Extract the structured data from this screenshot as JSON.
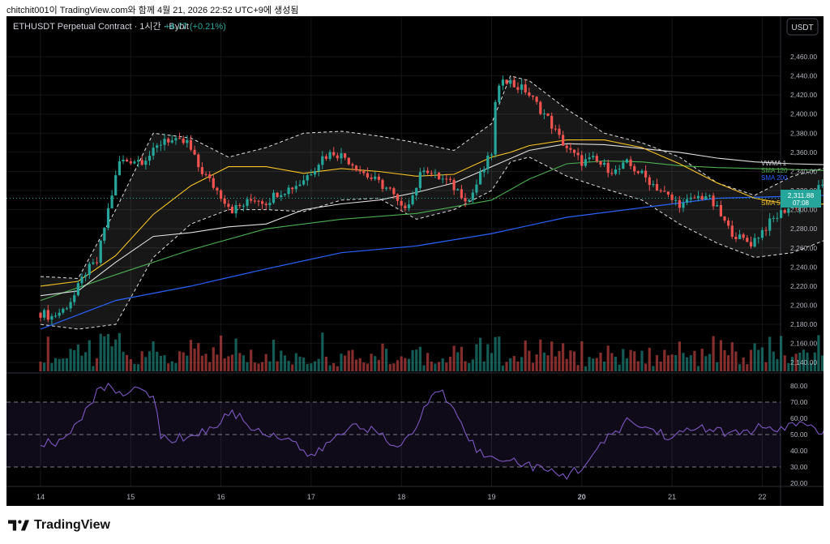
{
  "header": {
    "caption": "chitchit001이 TradingView.com와 함께 4월 21, 2026 22:52 UTC+9에 생성됨"
  },
  "chart": {
    "symbol_line": "ETHUSDT Perpetual Contract · 1시간 · Bybit",
    "change": "+4.77 (+0.21%)",
    "currency_button": "USDT",
    "indicator_labels": [
      "VWMA 1",
      "SMA 120",
      "SMA 200",
      "SMA 50"
    ],
    "last_price": "2,311.88",
    "countdown": "07:08",
    "colors": {
      "up": "#26a69a",
      "down": "#ef5350",
      "vwma": "#e0e0e0",
      "sma120": "#4caf50",
      "sma200": "#2962ff",
      "sma50": "#f7c325",
      "rsi": "#7e57c2"
    }
  },
  "brand": {
    "name": "TradingView"
  },
  "chart_data": {
    "type": "candlestick",
    "price_axis": {
      "range": [
        2120,
        2470
      ],
      "ticks": [
        "2,460.00",
        "2,440.00",
        "2,420.00",
        "2,400.00",
        "2,380.00",
        "2,360.00",
        "2,340.00",
        "2,320.00",
        "2,300.00",
        "2,280.00",
        "2,260.00",
        "2,240.00",
        "2,220.00",
        "2,200.00",
        "2,180.00",
        "2,160.00",
        "2,140.00"
      ],
      "tick_values": [
        2460,
        2440,
        2420,
        2400,
        2380,
        2360,
        2340,
        2320,
        2300,
        2280,
        2260,
        2240,
        2220,
        2200,
        2180,
        2160,
        2140
      ]
    },
    "time_axis": {
      "labels": [
        "14",
        "15",
        "16",
        "17",
        "18",
        "19",
        "20",
        "21",
        "22"
      ],
      "bold_label": "20",
      "hours_range": [
        0,
        220
      ]
    },
    "price_anchors": [
      [
        0,
        2192
      ],
      [
        3,
        2188
      ],
      [
        6,
        2195
      ],
      [
        9,
        2210
      ],
      [
        12,
        2235
      ],
      [
        15,
        2245
      ],
      [
        18,
        2300
      ],
      [
        21,
        2350
      ],
      [
        24,
        2352
      ],
      [
        27,
        2352
      ],
      [
        30,
        2360
      ],
      [
        33,
        2375
      ],
      [
        36,
        2370
      ],
      [
        39,
        2370
      ],
      [
        42,
        2345
      ],
      [
        45,
        2330
      ],
      [
        48,
        2315
      ],
      [
        51,
        2300
      ],
      [
        54,
        2305
      ],
      [
        57,
        2312
      ],
      [
        60,
        2308
      ],
      [
        63,
        2318
      ],
      [
        66,
        2322
      ],
      [
        69,
        2328
      ],
      [
        72,
        2340
      ],
      [
        75,
        2355
      ],
      [
        78,
        2360
      ],
      [
        81,
        2355
      ],
      [
        84,
        2345
      ],
      [
        87,
        2335
      ],
      [
        90,
        2328
      ],
      [
        93,
        2320
      ],
      [
        96,
        2300
      ],
      [
        99,
        2315
      ],
      [
        102,
        2345
      ],
      [
        105,
        2335
      ],
      [
        108,
        2330
      ],
      [
        111,
        2320
      ],
      [
        114,
        2310
      ],
      [
        117,
        2335
      ],
      [
        120,
        2360
      ],
      [
        121,
        2410
      ],
      [
        123,
        2440
      ],
      [
        126,
        2430
      ],
      [
        129,
        2425
      ],
      [
        132,
        2410
      ],
      [
        135,
        2395
      ],
      [
        138,
        2375
      ],
      [
        141,
        2360
      ],
      [
        144,
        2350
      ],
      [
        147,
        2352
      ],
      [
        150,
        2345
      ],
      [
        153,
        2340
      ],
      [
        156,
        2348
      ],
      [
        159,
        2340
      ],
      [
        162,
        2330
      ],
      [
        165,
        2320
      ],
      [
        168,
        2310
      ],
      [
        171,
        2305
      ],
      [
        174,
        2312
      ],
      [
        177,
        2315
      ],
      [
        180,
        2300
      ],
      [
        183,
        2280
      ],
      [
        186,
        2270
      ],
      [
        189,
        2265
      ],
      [
        192,
        2278
      ],
      [
        195,
        2290
      ],
      [
        198,
        2300
      ],
      [
        201,
        2305
      ],
      [
        204,
        2310
      ],
      [
        207,
        2322
      ],
      [
        210,
        2320
      ],
      [
        213,
        2315
      ],
      [
        216,
        2318
      ],
      [
        219,
        2312
      ]
    ],
    "indicators": {
      "sma200": [
        [
          0,
          2175
        ],
        [
          20,
          2205
        ],
        [
          40,
          2220
        ],
        [
          60,
          2238
        ],
        [
          80,
          2255
        ],
        [
          100,
          2262
        ],
        [
          120,
          2275
        ],
        [
          140,
          2292
        ],
        [
          160,
          2302
        ],
        [
          180,
          2312
        ],
        [
          200,
          2314
        ],
        [
          219,
          2316
        ]
      ],
      "sma120": [
        [
          0,
          2205
        ],
        [
          20,
          2232
        ],
        [
          40,
          2258
        ],
        [
          60,
          2280
        ],
        [
          80,
          2290
        ],
        [
          100,
          2296
        ],
        [
          120,
          2310
        ],
        [
          130,
          2332
        ],
        [
          140,
          2348
        ],
        [
          150,
          2351
        ],
        [
          160,
          2350
        ],
        [
          170,
          2346
        ],
        [
          180,
          2344
        ],
        [
          200,
          2342
        ],
        [
          219,
          2340
        ]
      ],
      "vwma": [
        [
          0,
          2210
        ],
        [
          10,
          2215
        ],
        [
          20,
          2245
        ],
        [
          30,
          2272
        ],
        [
          40,
          2276
        ],
        [
          50,
          2282
        ],
        [
          60,
          2285
        ],
        [
          70,
          2300
        ],
        [
          80,
          2306
        ],
        [
          90,
          2310
        ],
        [
          100,
          2318
        ],
        [
          110,
          2328
        ],
        [
          120,
          2345
        ],
        [
          130,
          2362
        ],
        [
          140,
          2369
        ],
        [
          150,
          2368
        ],
        [
          160,
          2364
        ],
        [
          170,
          2360
        ],
        [
          180,
          2354
        ],
        [
          190,
          2350
        ],
        [
          200,
          2348
        ],
        [
          219,
          2346
        ]
      ],
      "sma50": [
        [
          0,
          2220
        ],
        [
          10,
          2225
        ],
        [
          20,
          2252
        ],
        [
          30,
          2295
        ],
        [
          40,
          2325
        ],
        [
          50,
          2345
        ],
        [
          60,
          2345
        ],
        [
          70,
          2338
        ],
        [
          80,
          2343
        ],
        [
          90,
          2340
        ],
        [
          100,
          2335
        ],
        [
          110,
          2337
        ],
        [
          120,
          2355
        ],
        [
          125,
          2360
        ],
        [
          130,
          2367
        ],
        [
          140,
          2373
        ],
        [
          150,
          2373
        ],
        [
          160,
          2365
        ],
        [
          170,
          2348
        ],
        [
          180,
          2328
        ],
        [
          190,
          2312
        ],
        [
          200,
          2305
        ],
        [
          210,
          2306
        ],
        [
          219,
          2306
        ]
      ],
      "bb_upper": [
        [
          0,
          2230
        ],
        [
          10,
          2228
        ],
        [
          20,
          2300
        ],
        [
          30,
          2380
        ],
        [
          40,
          2375
        ],
        [
          50,
          2355
        ],
        [
          60,
          2365
        ],
        [
          70,
          2380
        ],
        [
          80,
          2382
        ],
        [
          90,
          2377
        ],
        [
          100,
          2370
        ],
        [
          110,
          2362
        ],
        [
          120,
          2390
        ],
        [
          125,
          2440
        ],
        [
          130,
          2435
        ],
        [
          140,
          2405
        ],
        [
          150,
          2380
        ],
        [
          160,
          2370
        ],
        [
          170,
          2355
        ],
        [
          180,
          2328
        ],
        [
          190,
          2315
        ],
        [
          200,
          2335
        ],
        [
          210,
          2345
        ],
        [
          219,
          2348
        ]
      ],
      "bb_lower": [
        [
          0,
          2180
        ],
        [
          10,
          2175
        ],
        [
          20,
          2180
        ],
        [
          30,
          2250
        ],
        [
          40,
          2285
        ],
        [
          50,
          2300
        ],
        [
          60,
          2300
        ],
        [
          70,
          2298
        ],
        [
          80,
          2310
        ],
        [
          90,
          2312
        ],
        [
          100,
          2290
        ],
        [
          110,
          2300
        ],
        [
          120,
          2320
        ],
        [
          125,
          2350
        ],
        [
          130,
          2355
        ],
        [
          140,
          2335
        ],
        [
          150,
          2322
        ],
        [
          160,
          2310
        ],
        [
          170,
          2285
        ],
        [
          180,
          2265
        ],
        [
          190,
          2250
        ],
        [
          200,
          2255
        ],
        [
          210,
          2270
        ],
        [
          219,
          2280
        ]
      ]
    },
    "volume_max_note": "volume bars shown without axis",
    "rsi": {
      "axis_ticks": [
        "80.00",
        "70.00",
        "60.00",
        "50.00",
        "40.00",
        "30.00",
        "20.00"
      ],
      "tick_values": [
        80,
        70,
        60,
        50,
        40,
        30,
        20
      ],
      "range": [
        15,
        85
      ],
      "band": [
        30,
        70
      ],
      "anchors": [
        [
          0,
          45
        ],
        [
          4,
          44
        ],
        [
          8,
          52
        ],
        [
          10,
          60
        ],
        [
          13,
          66
        ],
        [
          16,
          80
        ],
        [
          20,
          78
        ],
        [
          23,
          76
        ],
        [
          27,
          77
        ],
        [
          30,
          75
        ],
        [
          32,
          48
        ],
        [
          36,
          47
        ],
        [
          40,
          50
        ],
        [
          44,
          52
        ],
        [
          48,
          58
        ],
        [
          51,
          65
        ],
        [
          54,
          58
        ],
        [
          58,
          52
        ],
        [
          62,
          50
        ],
        [
          66,
          48
        ],
        [
          70,
          40
        ],
        [
          72,
          35
        ],
        [
          76,
          44
        ],
        [
          80,
          50
        ],
        [
          84,
          58
        ],
        [
          86,
          55
        ],
        [
          90,
          50
        ],
        [
          94,
          42
        ],
        [
          98,
          48
        ],
        [
          100,
          55
        ],
        [
          102,
          66
        ],
        [
          104,
          72
        ],
        [
          106,
          78
        ],
        [
          108,
          72
        ],
        [
          110,
          68
        ],
        [
          112,
          58
        ],
        [
          116,
          40
        ],
        [
          120,
          35
        ],
        [
          124,
          36
        ],
        [
          128,
          32
        ],
        [
          132,
          30
        ],
        [
          136,
          26
        ],
        [
          140,
          25
        ],
        [
          144,
          30
        ],
        [
          148,
          40
        ],
        [
          152,
          50
        ],
        [
          156,
          58
        ],
        [
          160,
          55
        ],
        [
          164,
          52
        ],
        [
          168,
          48
        ],
        [
          172,
          52
        ],
        [
          176,
          55
        ],
        [
          180,
          52
        ],
        [
          184,
          50
        ],
        [
          188,
          52
        ],
        [
          192,
          55
        ],
        [
          196,
          50
        ],
        [
          200,
          58
        ],
        [
          204,
          55
        ],
        [
          208,
          52
        ],
        [
          212,
          56
        ],
        [
          216,
          50
        ],
        [
          219,
          47
        ]
      ]
    }
  }
}
